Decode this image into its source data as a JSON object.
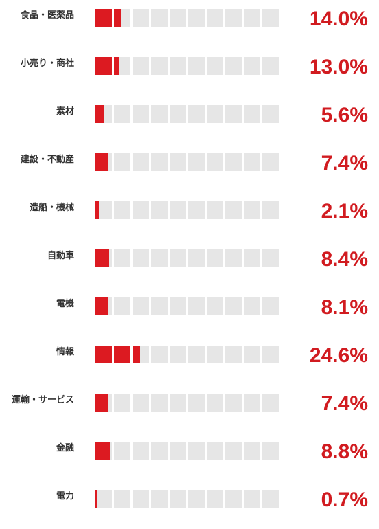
{
  "colors": {
    "fill": "#dc1a21",
    "empty": "#e6e6e6",
    "value_text": "#d11b20",
    "label_text": "#333333"
  },
  "chart_data": {
    "type": "bar",
    "unit": "%",
    "cells_per_bar": 10,
    "percent_per_cell": 10,
    "categories": [
      "食品・医薬品",
      "小売り・商社",
      "素材",
      "建設・不動産",
      "造船・機械",
      "自動車",
      "電機",
      "情報",
      "運輸・サービス",
      "金融",
      "電力"
    ],
    "values": [
      14.0,
      13.0,
      5.6,
      7.4,
      2.1,
      8.4,
      8.1,
      24.6,
      7.4,
      8.8,
      0.7
    ],
    "value_labels": [
      "14.0%",
      "13.0%",
      "5.6%",
      "7.4%",
      "2.1%",
      "8.4%",
      "8.1%",
      "24.6%",
      "7.4%",
      "8.8%",
      "0.7%"
    ]
  }
}
